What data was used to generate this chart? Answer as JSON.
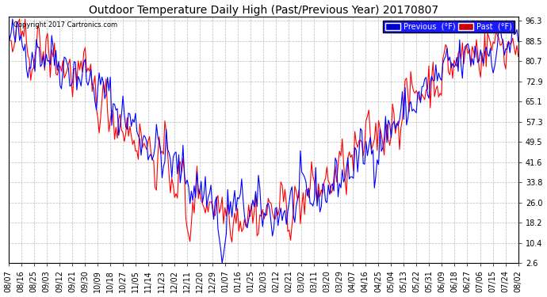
{
  "title": "Outdoor Temperature Daily High (Past/Previous Year) 20170807",
  "copyright": "Copyright 2017 Cartronics.com",
  "yticks": [
    2.6,
    10.4,
    18.2,
    26.0,
    33.8,
    41.6,
    49.5,
    57.3,
    65.1,
    72.9,
    80.7,
    88.5,
    96.3
  ],
  "background_color": "#ffffff",
  "grid_color": "#aaaaaa",
  "legend_previous_label": "Previous  (°F)",
  "legend_past_label": "Past  (°F)",
  "legend_previous_color": "#0000ff",
  "legend_past_color": "#ff0000",
  "legend_prev_bg": "#0000cc",
  "legend_past_bg": "#cc0000",
  "line_width": 0.8,
  "title_fontsize": 10,
  "tick_fontsize": 7,
  "xlabels": [
    "08/07",
    "08/16",
    "08/25",
    "09/03",
    "09/12",
    "09/21",
    "09/30",
    "10/09",
    "10/18",
    "10/27",
    "11/05",
    "11/14",
    "11/23",
    "12/02",
    "12/11",
    "12/20",
    "12/29",
    "01/07",
    "01/16",
    "01/25",
    "02/03",
    "02/12",
    "02/21",
    "03/02",
    "03/11",
    "03/20",
    "03/29",
    "04/07",
    "04/16",
    "04/25",
    "05/04",
    "05/13",
    "05/22",
    "05/31",
    "06/09",
    "06/18",
    "06/27",
    "07/06",
    "07/15",
    "07/24",
    "08/02"
  ]
}
